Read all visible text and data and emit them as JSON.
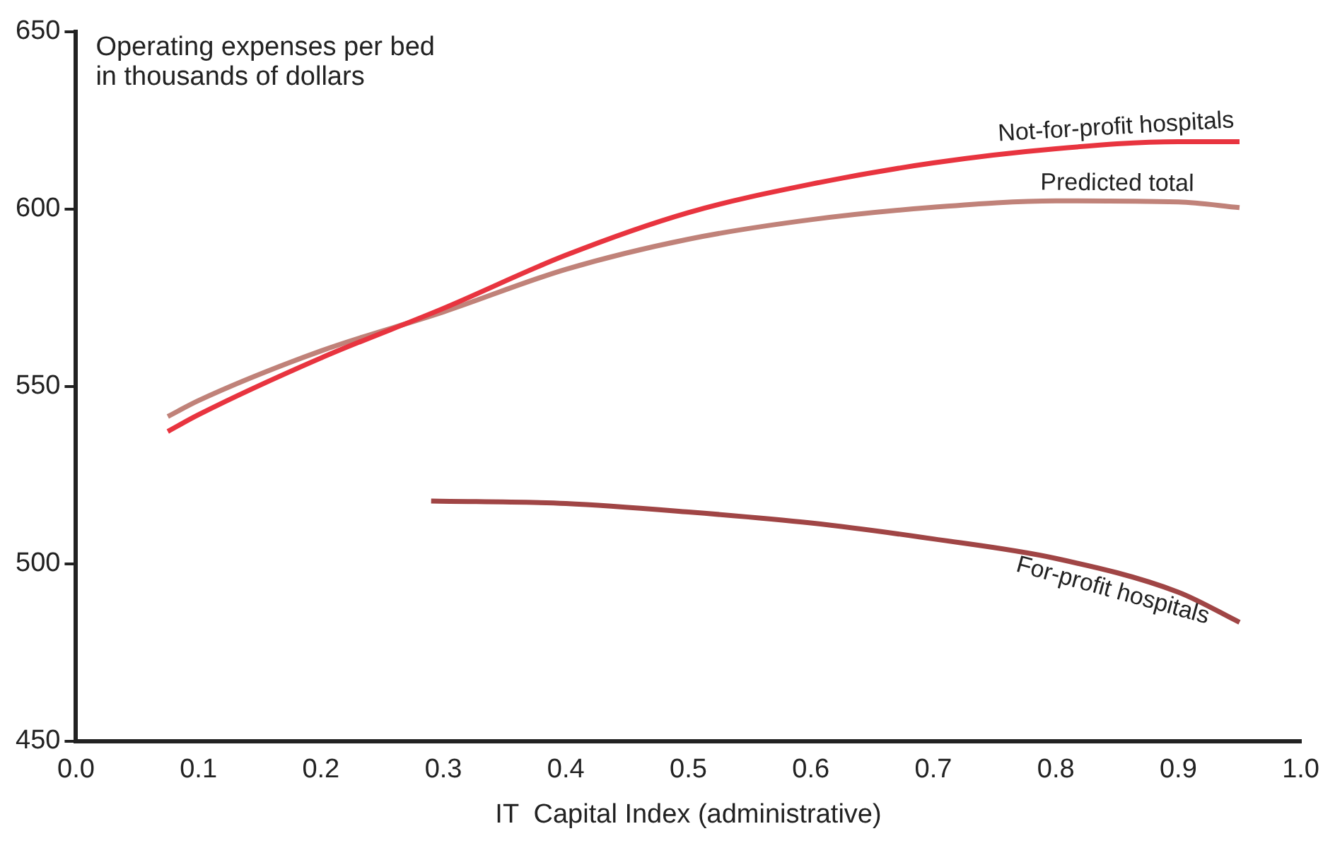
{
  "chart_data": {
    "type": "line",
    "ylabel": "Operating expenses per bed\nin thousands of dollars",
    "xlabel": "IT  Capital Index (administrative)",
    "xlim": [
      0,
      1
    ],
    "ylim": [
      450,
      650
    ],
    "xticks": [
      {
        "value": 0,
        "label": "0.0"
      },
      0.1,
      0.2,
      0.3,
      0.4,
      0.5,
      0.6,
      0.7,
      0.8,
      0.9,
      {
        "value": 1,
        "label": "1.0"
      }
    ],
    "yticks": [
      450,
      500,
      550,
      600,
      650
    ],
    "grid": false,
    "legend": false,
    "marker": "none",
    "line_style": "solid",
    "series": [
      {
        "name": "Not-for-profit hospitals",
        "color": "#e8343f",
        "x": [
          0.075,
          0.1,
          0.2,
          0.3,
          0.4,
          0.5,
          0.6,
          0.7,
          0.8,
          0.9,
          0.95
        ],
        "values": [
          537.3,
          542,
          558,
          572,
          587,
          599,
          607,
          613,
          617,
          619,
          619
        ]
      },
      {
        "name": "Predicted total",
        "color": "#c08279",
        "x": [
          0.075,
          0.1,
          0.2,
          0.3,
          0.4,
          0.5,
          0.6,
          0.7,
          0.8,
          0.9,
          0.95
        ],
        "values": [
          541.5,
          546,
          560,
          571,
          583,
          591.5,
          597,
          600.5,
          602.3,
          602,
          600.4
        ]
      },
      {
        "name": "For-profit hospitals",
        "color": "#a04545",
        "x": [
          0.29,
          0.4,
          0.5,
          0.6,
          0.7,
          0.8,
          0.9,
          0.95
        ],
        "values": [
          517.7,
          517,
          514.6,
          511.5,
          507,
          501.5,
          492,
          483.5
        ]
      }
    ]
  }
}
